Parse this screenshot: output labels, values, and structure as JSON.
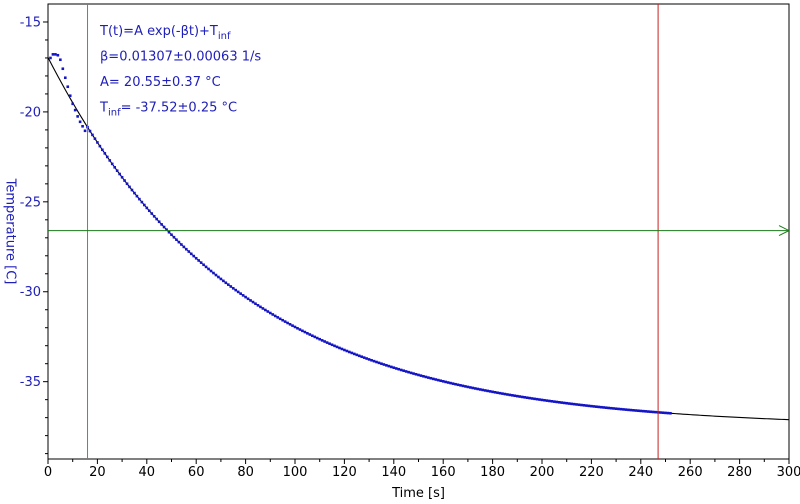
{
  "chart_data": {
    "type": "scatter",
    "xlabel": "Time [s]",
    "ylabel": "Temperature [C]",
    "xlim": [
      0,
      300
    ],
    "ylim": [
      -39.3,
      -14
    ],
    "x_ticks": [
      0,
      20,
      40,
      60,
      80,
      100,
      120,
      140,
      160,
      180,
      200,
      220,
      240,
      260,
      280,
      300
    ],
    "y_ticks": [
      -15,
      -20,
      -25,
      -30,
      -35
    ],
    "grid": false,
    "fit_model": {
      "A": 20.55,
      "beta": 0.01307,
      "T_inf": -37.52
    },
    "measured_points": {
      "color": "#1414c8",
      "x_start": 1,
      "x_end": 252,
      "x_step": 1,
      "early": [
        [
          1,
          -17.0
        ],
        [
          2,
          -16.8
        ],
        [
          3,
          -16.8
        ],
        [
          4,
          -16.85
        ],
        [
          5,
          -17.1
        ],
        [
          6,
          -17.6
        ],
        [
          7,
          -18.1
        ],
        [
          8,
          -18.6
        ],
        [
          9,
          -19.1
        ],
        [
          10,
          -19.55
        ],
        [
          11,
          -19.9
        ],
        [
          12,
          -20.25
        ],
        [
          13,
          -20.55
        ],
        [
          14,
          -20.8
        ],
        [
          15,
          -21.05
        ]
      ]
    },
    "fit_line": {
      "color": "#000000",
      "x_start": 0,
      "x_end": 300
    },
    "markers": {
      "lower_time": 16,
      "upper_time": 247,
      "lower_color": "#22b822",
      "upper_color": "#c82020",
      "threshold_temperature": -26.6,
      "threshold_color": "#1a7a1a"
    },
    "annotations": [
      {
        "main": "T(t)=A exp(-βt)+T",
        "sub": "inf"
      },
      {
        "main": "β=0.01307±0.00063 1/s",
        "sub": ""
      },
      {
        "main": "A= 20.55±0.37 °C",
        "sub": ""
      },
      {
        "main": "T",
        "sub": "inf",
        "tail": "= -37.52±0.25 °C"
      }
    ],
    "colors": {
      "y_axis_text": "#1f1fb8",
      "x_axis_text": "#000000"
    }
  }
}
